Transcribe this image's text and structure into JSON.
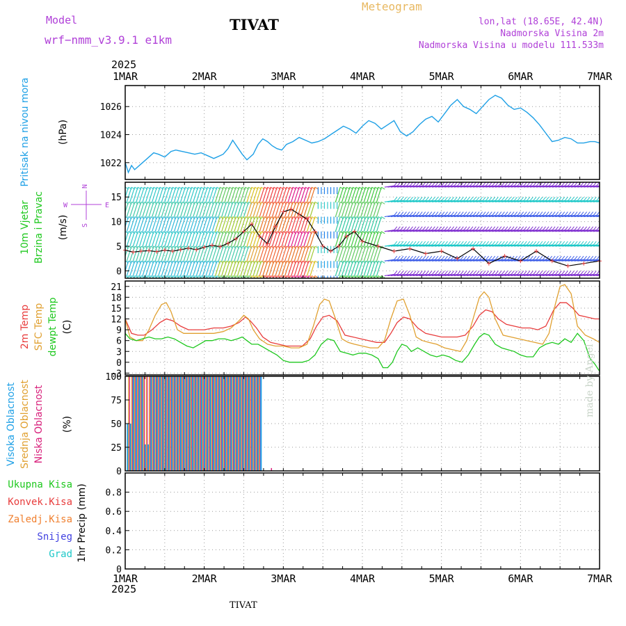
{
  "header": {
    "model_label": "Model",
    "model_name": "wrf−nmm_v3.9.1  e1km",
    "station": "TIVAT",
    "product": "Meteogram",
    "coords": "lon,lat (18.65E, 42.4N)",
    "elevation": "Nadmorska Visina 2m",
    "model_elevation": "Nadmorska Visina u modelu 111.533m",
    "year_top": "2025",
    "year_bottom": "2025",
    "footer_station": "TIVAT",
    "credit": "made by Angel"
  },
  "colors": {
    "pressure": "#1ea0e6",
    "wind_label": "#1ec81e",
    "compass": "#b040d8",
    "t2m": "#e83c3c",
    "sfc": "#e0a030",
    "dewpt": "#1ec81e",
    "cloud_high": "#1ea0e6",
    "cloud_mid": "#e0a030",
    "cloud_low": "#d81e7a",
    "precip_total": "#1ec81e",
    "precip_conv": "#e83c3c",
    "precip_freez": "#f08030",
    "precip_snow": "#4040e0",
    "precip_hail": "#1ec8c8",
    "header_purple": "#b040d8",
    "header_title_orange": "#e8b860"
  },
  "chart_data": [
    {
      "type": "line",
      "panel": "pressure",
      "ylabel": [
        "Pritisak na nivou mora",
        "(hPa)"
      ],
      "ylim": [
        1020.8,
        1027.5
      ],
      "yticks": [
        1022,
        1024,
        1026
      ],
      "x_day_ticks": [
        "1MAR",
        "2MAR",
        "3MAR",
        "4MAR",
        "5MAR",
        "6MAR",
        "7MAR"
      ],
      "x_start_day": 1,
      "x_end_day": 7,
      "series": [
        {
          "x": [
            1.0,
            1.04,
            1.08,
            1.12,
            1.2,
            1.28,
            1.36,
            1.42,
            1.5,
            1.58,
            1.64,
            1.72,
            1.8,
            1.88,
            1.96,
            2.04,
            2.12,
            2.16,
            2.24,
            2.3,
            2.36,
            2.42,
            2.48,
            2.54,
            2.62,
            2.68,
            2.74,
            2.8,
            2.86,
            2.92,
            2.98,
            3.04,
            3.12,
            3.2,
            3.28,
            3.36,
            3.44,
            3.52,
            3.6,
            3.68,
            3.76,
            3.84,
            3.92,
            4.0,
            4.08,
            4.16,
            4.24,
            4.32,
            4.4,
            4.48,
            4.56,
            4.64,
            4.72,
            4.8,
            4.88,
            4.96,
            5.04,
            5.12,
            5.2,
            5.28,
            5.36,
            5.44,
            5.52,
            5.6,
            5.68,
            5.76,
            5.84,
            5.92,
            6.0,
            6.08,
            6.16,
            6.24,
            6.32,
            6.4,
            6.48,
            6.56,
            6.64,
            6.72,
            6.8,
            6.88,
            6.94,
            7.0
          ],
          "y": [
            1022.0,
            1021.3,
            1021.8,
            1021.5,
            1021.9,
            1022.3,
            1022.7,
            1022.6,
            1022.4,
            1022.8,
            1022.9,
            1022.8,
            1022.7,
            1022.6,
            1022.7,
            1022.5,
            1022.3,
            1022.4,
            1022.6,
            1023.0,
            1023.6,
            1023.1,
            1022.6,
            1022.2,
            1022.6,
            1023.3,
            1023.7,
            1023.5,
            1023.2,
            1023.0,
            1022.9,
            1023.3,
            1023.5,
            1023.8,
            1023.6,
            1023.4,
            1023.5,
            1023.7,
            1024.0,
            1024.3,
            1024.6,
            1024.4,
            1024.1,
            1024.6,
            1025.0,
            1024.8,
            1024.4,
            1024.7,
            1025.0,
            1024.2,
            1023.9,
            1024.2,
            1024.7,
            1025.1,
            1025.3,
            1024.9,
            1025.5,
            1026.1,
            1026.5,
            1026.0,
            1025.8,
            1025.5,
            1026.0,
            1026.5,
            1026.8,
            1026.6,
            1026.1,
            1025.8,
            1025.9,
            1025.6,
            1025.2,
            1024.7,
            1024.1,
            1023.5,
            1023.6,
            1023.8,
            1023.7,
            1023.4,
            1023.4,
            1023.5,
            1023.5,
            1023.4
          ]
        }
      ]
    },
    {
      "type": "line",
      "panel": "wind",
      "ylabel": [
        "10m Vjetar",
        "Brzina i Pravac",
        "(m/s)"
      ],
      "compass": {
        "n": "N",
        "w": "W",
        "e": "E",
        "s": "S"
      },
      "ylim": [
        -1.5,
        18
      ],
      "yticks": [
        0,
        5,
        10,
        15
      ],
      "series": [
        {
          "name": "wind speed",
          "x": [
            1.0,
            1.1,
            1.2,
            1.3,
            1.4,
            1.5,
            1.6,
            1.7,
            1.8,
            1.9,
            2.0,
            2.1,
            2.2,
            2.3,
            2.4,
            2.5,
            2.6,
            2.7,
            2.8,
            2.9,
            3.0,
            3.1,
            3.2,
            3.3,
            3.4,
            3.5,
            3.6,
            3.7,
            3.8,
            3.9,
            4.0,
            4.2,
            4.4,
            4.6,
            4.8,
            5.0,
            5.2,
            5.4,
            5.6,
            5.8,
            6.0,
            6.2,
            6.4,
            6.6,
            6.8,
            7.0
          ],
          "y": [
            4.2,
            3.8,
            4.0,
            4.1,
            3.9,
            4.2,
            4.0,
            4.3,
            4.6,
            4.3,
            4.8,
            5.2,
            4.9,
            5.6,
            6.5,
            8.0,
            9.5,
            7.0,
            5.5,
            9.0,
            12.0,
            12.5,
            11.5,
            10.5,
            8.0,
            5.0,
            4.0,
            5.0,
            7.0,
            8.0,
            6.0,
            5.0,
            4.0,
            4.5,
            3.5,
            4.0,
            2.5,
            4.5,
            1.5,
            3.0,
            2.0,
            4.0,
            2.0,
            1.0,
            1.5,
            2.0
          ]
        }
      ]
    },
    {
      "type": "line",
      "panel": "temperature",
      "ylabel": [
        "2m Temp",
        "SFC Temp",
        "dewpt Temp",
        "(C)"
      ],
      "ylim": [
        -3.5,
        22.5
      ],
      "yticks": [
        -3,
        0,
        3,
        6,
        9,
        12,
        15,
        18,
        21
      ],
      "series": [
        {
          "name": "2m Temp",
          "x": [
            1.0,
            1.08,
            1.16,
            1.24,
            1.34,
            1.44,
            1.52,
            1.6,
            1.7,
            1.8,
            1.9,
            2.0,
            2.12,
            2.24,
            2.34,
            2.44,
            2.52,
            2.58,
            2.66,
            2.74,
            2.84,
            2.94,
            3.04,
            3.14,
            3.24,
            3.34,
            3.42,
            3.5,
            3.58,
            3.68,
            3.78,
            3.88,
            3.98,
            4.08,
            4.18,
            4.28,
            4.36,
            4.44,
            4.52,
            4.6,
            4.7,
            4.8,
            4.9,
            5.0,
            5.1,
            5.2,
            5.3,
            5.4,
            5.48,
            5.56,
            5.64,
            5.72,
            5.82,
            5.92,
            6.02,
            6.12,
            6.22,
            6.32,
            6.42,
            6.5,
            6.58,
            6.66,
            6.74,
            6.84,
            6.94,
            7.0
          ],
          "y": [
            12.0,
            8.0,
            7.5,
            7.5,
            9.0,
            11.0,
            12.0,
            11.5,
            10.0,
            9.0,
            9.0,
            9.0,
            9.5,
            9.5,
            10.0,
            11.0,
            12.5,
            11.5,
            9.5,
            7.0,
            5.5,
            5.0,
            4.5,
            4.5,
            4.5,
            6.5,
            10.0,
            12.5,
            13.0,
            11.5,
            7.5,
            7.0,
            6.5,
            6.0,
            5.5,
            5.5,
            8.0,
            11.0,
            12.5,
            12.0,
            9.5,
            8.0,
            7.5,
            7.0,
            7.0,
            7.0,
            7.5,
            10.0,
            13.0,
            14.5,
            14.0,
            12.0,
            10.5,
            10.0,
            9.5,
            9.5,
            9.0,
            10.0,
            14.5,
            16.5,
            16.5,
            15.0,
            13.0,
            12.5,
            12.0,
            12.0
          ]
        },
        {
          "name": "SFC Temp",
          "x": [
            1.0,
            1.06,
            1.14,
            1.22,
            1.3,
            1.38,
            1.46,
            1.52,
            1.58,
            1.66,
            1.74,
            1.82,
            1.92,
            2.02,
            2.12,
            2.24,
            2.34,
            2.44,
            2.5,
            2.56,
            2.62,
            2.7,
            2.8,
            2.9,
            3.0,
            3.1,
            3.2,
            3.3,
            3.38,
            3.46,
            3.52,
            3.58,
            3.66,
            3.74,
            3.82,
            3.9,
            4.0,
            4.1,
            4.2,
            4.28,
            4.36,
            4.44,
            4.52,
            4.6,
            4.68,
            4.76,
            4.84,
            4.94,
            5.04,
            5.14,
            5.24,
            5.32,
            5.4,
            5.48,
            5.54,
            5.6,
            5.68,
            5.78,
            5.88,
            5.98,
            6.08,
            6.18,
            6.28,
            6.36,
            6.44,
            6.5,
            6.56,
            6.64,
            6.72,
            6.82,
            6.92,
            7.0
          ],
          "y": [
            12.0,
            7.0,
            6.0,
            6.0,
            9.0,
            13.0,
            16.0,
            16.5,
            14.0,
            9.0,
            8.0,
            8.0,
            8.0,
            8.0,
            8.0,
            8.5,
            9.5,
            11.5,
            13.0,
            12.0,
            9.0,
            6.5,
            5.0,
            4.5,
            4.5,
            4.0,
            4.0,
            5.0,
            10.0,
            16.0,
            17.5,
            17.0,
            12.0,
            6.5,
            5.5,
            5.0,
            4.5,
            4.0,
            4.0,
            6.0,
            12.0,
            17.0,
            17.5,
            13.0,
            7.0,
            6.0,
            5.5,
            5.0,
            4.0,
            3.5,
            3.0,
            6.0,
            12.0,
            18.0,
            19.5,
            18.0,
            12.0,
            7.5,
            7.0,
            6.5,
            6.0,
            5.5,
            5.0,
            8.0,
            16.0,
            21.0,
            21.5,
            19.0,
            10.0,
            7.5,
            6.5,
            5.5
          ]
        },
        {
          "name": "dewpt Temp",
          "x": [
            1.0,
            1.06,
            1.14,
            1.22,
            1.3,
            1.38,
            1.46,
            1.54,
            1.62,
            1.7,
            1.78,
            1.86,
            1.94,
            2.02,
            2.1,
            2.18,
            2.26,
            2.34,
            2.42,
            2.48,
            2.54,
            2.6,
            2.68,
            2.76,
            2.84,
            2.92,
            3.0,
            3.08,
            3.16,
            3.24,
            3.32,
            3.4,
            3.48,
            3.56,
            3.64,
            3.72,
            3.8,
            3.88,
            3.96,
            4.04,
            4.12,
            4.2,
            4.26,
            4.32,
            4.38,
            4.44,
            4.5,
            4.56,
            4.62,
            4.7,
            4.78,
            4.86,
            4.94,
            5.02,
            5.1,
            5.18,
            5.26,
            5.34,
            5.42,
            5.48,
            5.54,
            5.6,
            5.68,
            5.76,
            5.84,
            5.92,
            6.0,
            6.08,
            6.16,
            6.24,
            6.32,
            6.4,
            6.48,
            6.56,
            6.64,
            6.72,
            6.8,
            6.88,
            6.94,
            7.0
          ],
          "y": [
            8.0,
            6.5,
            6.0,
            6.5,
            7.0,
            6.5,
            6.5,
            7.0,
            6.5,
            5.5,
            4.5,
            4.0,
            5.0,
            6.0,
            6.0,
            6.5,
            6.5,
            6.0,
            6.5,
            7.0,
            6.0,
            5.0,
            5.0,
            4.0,
            3.0,
            2.0,
            0.5,
            0.0,
            0.0,
            0.0,
            0.5,
            2.0,
            5.0,
            6.5,
            6.0,
            3.0,
            2.5,
            2.0,
            2.5,
            2.5,
            2.0,
            1.0,
            -1.5,
            -1.5,
            0.0,
            3.0,
            5.0,
            4.5,
            3.0,
            4.0,
            3.0,
            2.0,
            1.5,
            2.0,
            1.5,
            0.5,
            0.0,
            2.0,
            5.0,
            7.0,
            8.0,
            7.5,
            5.0,
            4.0,
            3.5,
            3.0,
            2.0,
            1.5,
            1.5,
            4.0,
            5.0,
            5.5,
            5.0,
            6.5,
            5.5,
            8.0,
            6.0,
            1.0,
            -0.5,
            -2.5
          ]
        }
      ]
    },
    {
      "type": "bar",
      "panel": "clouds",
      "ylabel": [
        "Visoka Oblacnost",
        "Srednja Oblacnost",
        "Niska Oblacnost",
        "(%)"
      ],
      "ylim": [
        0,
        100
      ],
      "yticks": [
        0,
        25,
        50,
        75,
        100
      ],
      "bar_window_days": [
        1.03,
        2.72
      ],
      "notes": "cloud fractions near 100% for high/mid layers through ~2.7 MAR, near 0% afterwards"
    },
    {
      "type": "bar",
      "panel": "precip",
      "ylabel": [
        "1hr Precip (mm)"
      ],
      "ylim": [
        0,
        1.0
      ],
      "yticks": [
        0,
        0.2,
        0.4,
        0.6,
        0.8
      ],
      "legend": [
        "Ukupna  Kisa",
        "Konvek.Kisa",
        "Zaledj.Kisa",
        "Snijeg",
        "Grad"
      ],
      "values": []
    }
  ]
}
